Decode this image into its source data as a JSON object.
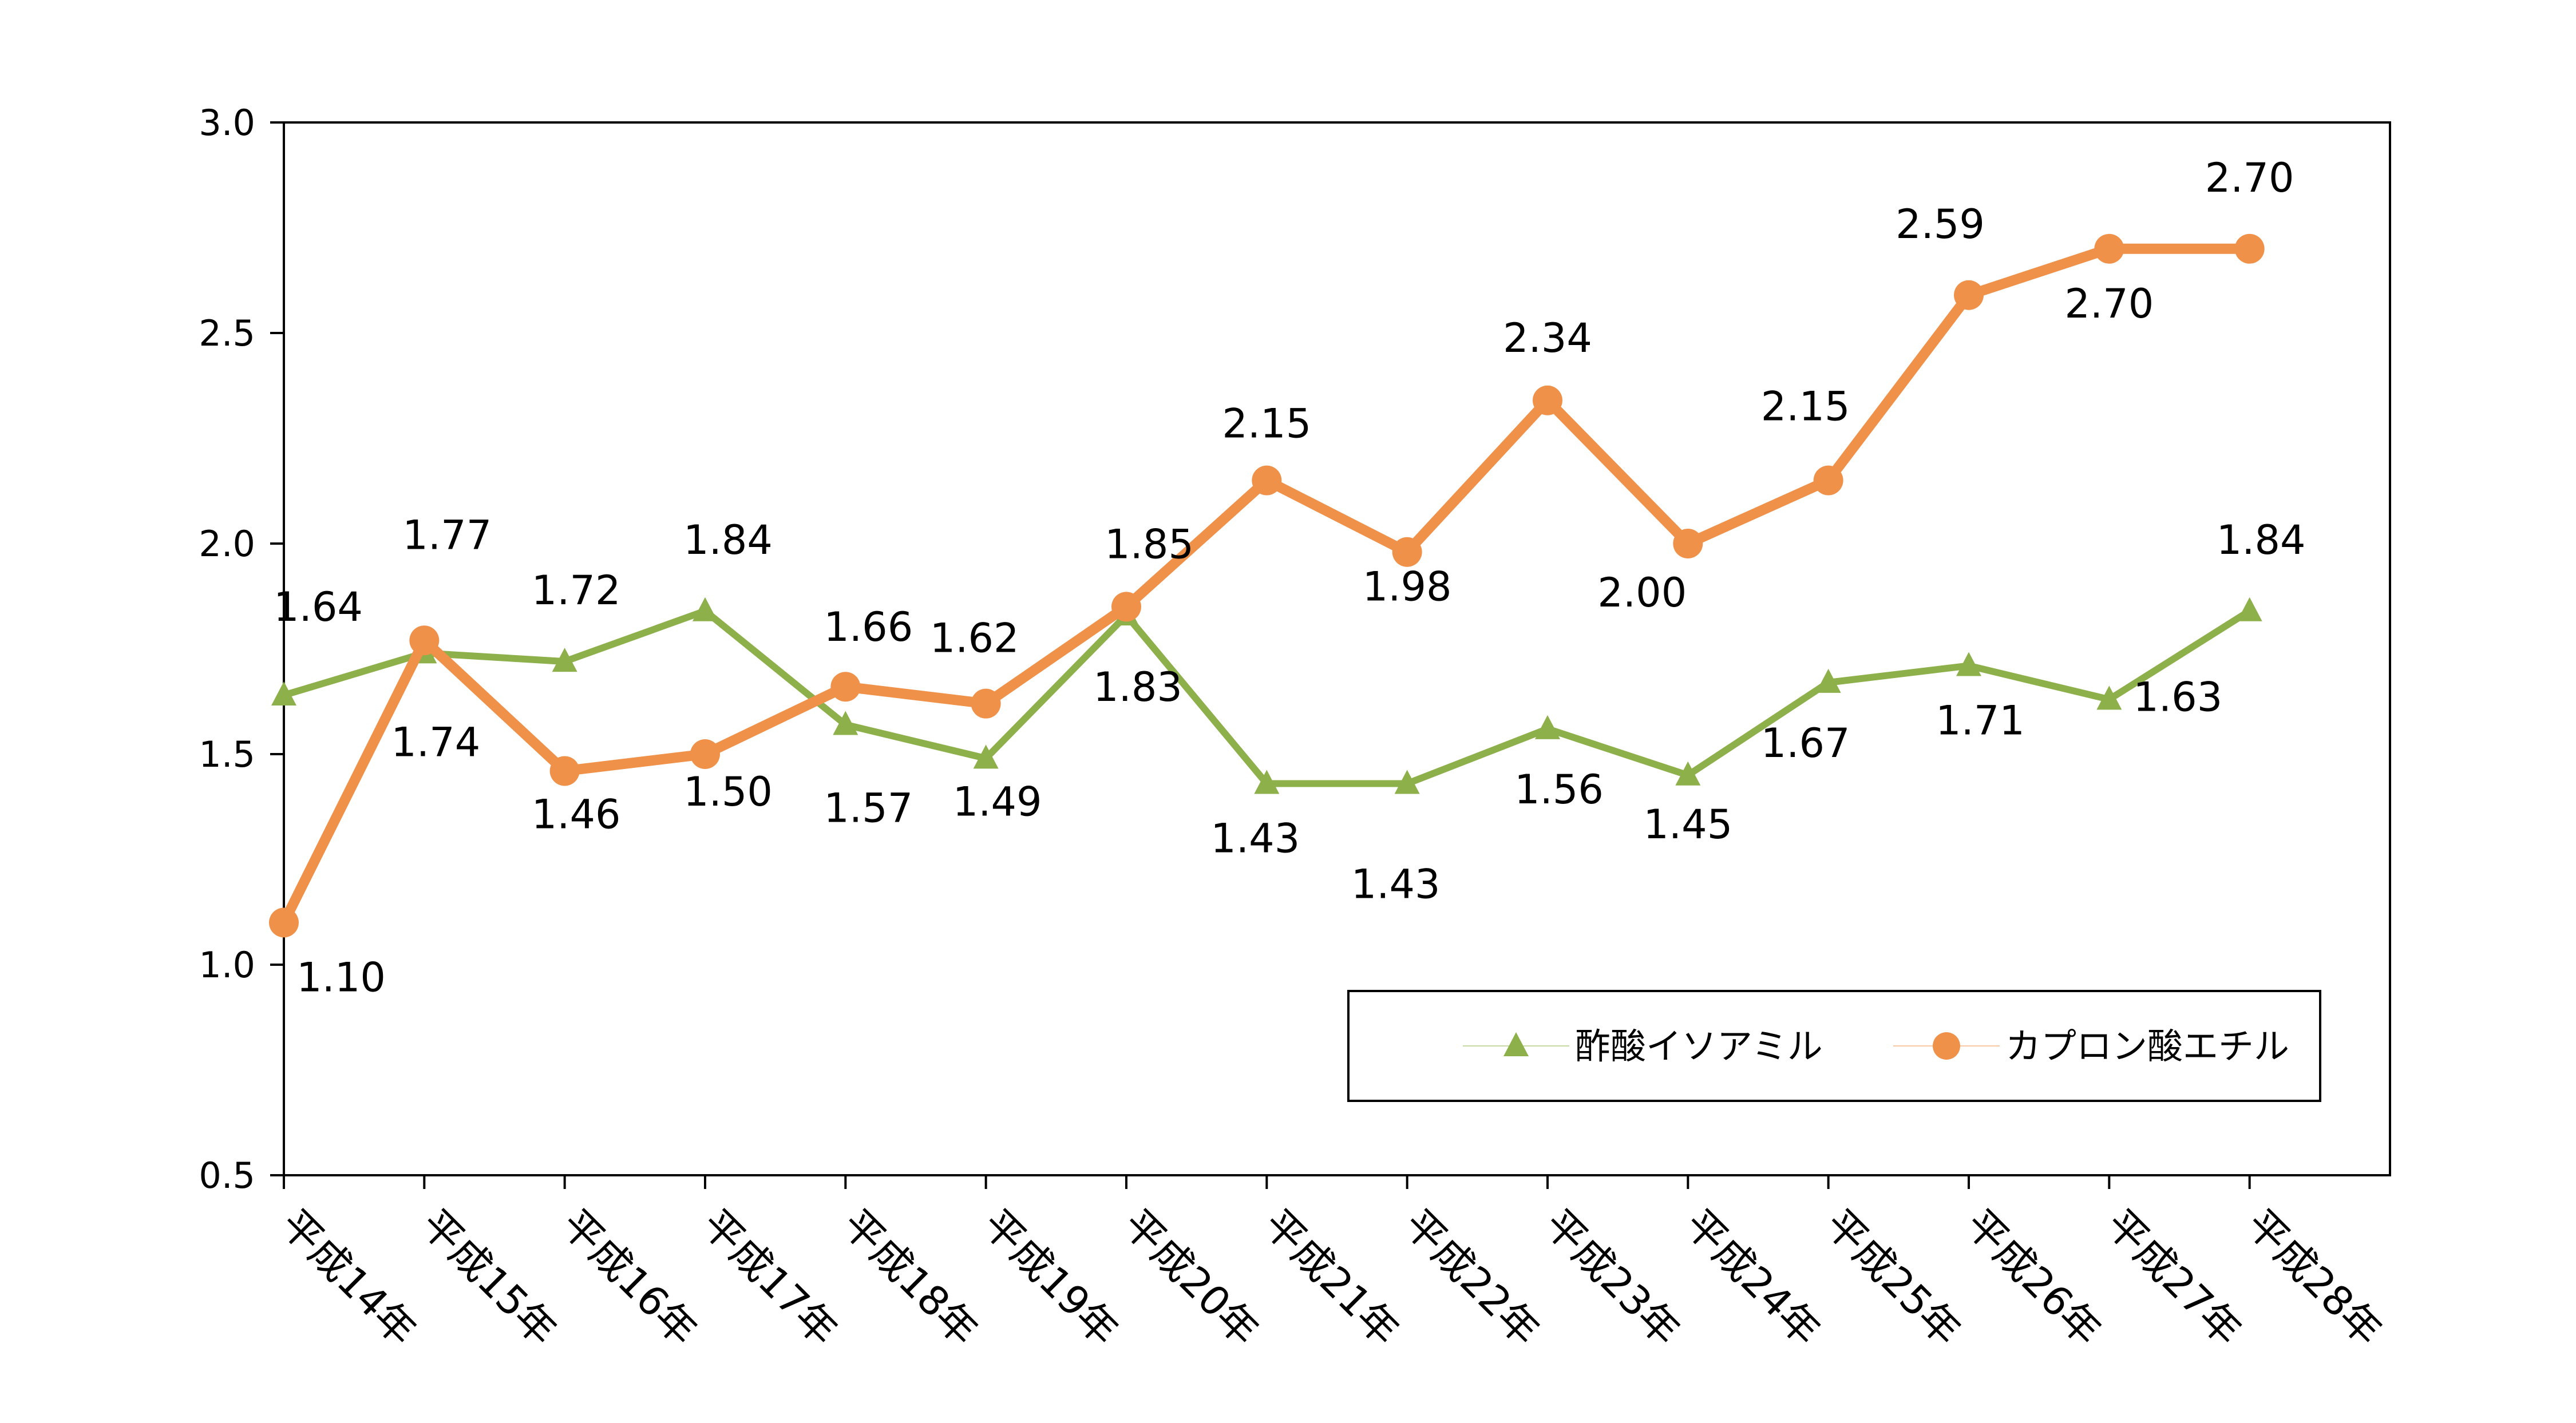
{
  "chart_data": {
    "type": "line",
    "title": "",
    "xlabel": "",
    "ylabel": "",
    "categories": [
      "平成14年",
      "平成15年",
      "平成16年",
      "平成17年",
      "平成18年",
      "平成19年",
      "平成20年",
      "平成21年",
      "平成22年",
      "平成23年",
      "平成24年",
      "平成25年",
      "平成26年",
      "平成27年",
      "平成28年"
    ],
    "ylim": [
      0.5,
      3.0
    ],
    "yticks": [
      "0.5",
      "1.0",
      "1.5",
      "2.0",
      "2.5",
      "3.0"
    ],
    "grid": false,
    "legend_position": "bottom-right",
    "series": [
      {
        "name": "酢酸イソアミル",
        "marker": "triangle",
        "color": "#8DB04A",
        "values": [
          1.64,
          1.74,
          1.72,
          1.84,
          1.57,
          1.49,
          1.83,
          1.43,
          1.43,
          1.56,
          1.45,
          1.67,
          1.71,
          1.63,
          1.84
        ],
        "labels": [
          "1.64",
          "1.74",
          "1.72",
          "1.84",
          "1.57",
          "1.49",
          "1.83",
          "1.43",
          "1.43",
          "1.56",
          "1.45",
          "1.67",
          "1.71",
          "1.63",
          "1.84"
        ]
      },
      {
        "name": "カプロン酸エチル",
        "marker": "circle",
        "color": "#F0914A",
        "values": [
          1.1,
          1.77,
          1.46,
          1.5,
          1.66,
          1.62,
          1.85,
          2.15,
          1.98,
          2.34,
          2.0,
          2.15,
          2.59,
          2.7,
          2.7
        ],
        "labels": [
          "1.10",
          "1.77",
          "1.46",
          "1.50",
          "1.66",
          "1.62",
          "1.85",
          "2.15",
          "1.98",
          "2.34",
          "2.00",
          "2.15",
          "2.59",
          "2.70",
          "2.70"
        ]
      }
    ]
  }
}
